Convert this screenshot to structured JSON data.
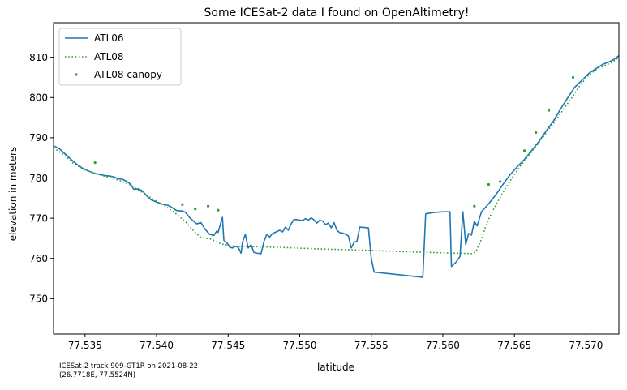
{
  "chart_data": {
    "type": "line",
    "title": "Some ICESat-2 data I found on OpenAltimetry!",
    "xlabel": "latitude",
    "ylabel": "elevation in meters",
    "xlim": [
      77.5328,
      77.5723
    ],
    "ylim": [
      741.2,
      818.6
    ],
    "xticks": [
      77.535,
      77.54,
      77.545,
      77.55,
      77.555,
      77.56,
      77.565,
      77.57
    ],
    "xtick_labels": [
      "77.535",
      "77.540",
      "77.545",
      "77.550",
      "77.555",
      "77.560",
      "77.565",
      "77.570"
    ],
    "yticks": [
      750,
      760,
      770,
      780,
      790,
      800,
      810
    ],
    "ytick_labels": [
      "750",
      "760",
      "770",
      "780",
      "790",
      "800",
      "810"
    ],
    "grid": false,
    "legend_position": "top-left",
    "annotation": [
      "ICESat-2 track 909-GT1R on 2021-08-22",
      "(26.7718E, 77.5524N)"
    ],
    "series": [
      {
        "name": "ATL06",
        "kind": "line",
        "style": "solid",
        "color": "#1f77b4",
        "points": [
          [
            77.5328,
            788.0
          ],
          [
            77.5332,
            787.3
          ],
          [
            77.5336,
            786.0
          ],
          [
            77.534,
            784.7
          ],
          [
            77.5344,
            783.5
          ],
          [
            77.5348,
            782.5
          ],
          [
            77.5352,
            781.8
          ],
          [
            77.5356,
            781.2
          ],
          [
            77.536,
            780.9
          ],
          [
            77.5364,
            780.6
          ],
          [
            77.5367,
            780.5
          ],
          [
            77.537,
            780.3
          ],
          [
            77.5373,
            779.8
          ],
          [
            77.5376,
            779.7
          ],
          [
            77.5379,
            779.2
          ],
          [
            77.5382,
            778.4
          ],
          [
            77.5384,
            777.2
          ],
          [
            77.5387,
            777.3
          ],
          [
            77.539,
            776.8
          ],
          [
            77.5393,
            775.6
          ],
          [
            77.5396,
            774.6
          ],
          [
            77.54,
            774.0
          ],
          [
            77.5404,
            773.5
          ],
          [
            77.5408,
            773.2
          ],
          [
            77.5411,
            772.6
          ],
          [
            77.5414,
            771.9
          ],
          [
            77.5418,
            771.8
          ],
          [
            77.542,
            771.5
          ],
          [
            77.5423,
            770.2
          ],
          [
            77.5426,
            769.2
          ],
          [
            77.5428,
            768.6
          ],
          [
            77.5431,
            768.9
          ],
          [
            77.5434,
            767.2
          ],
          [
            77.5437,
            766.0
          ],
          [
            77.544,
            765.7
          ],
          [
            77.5442,
            766.8
          ],
          [
            77.5443,
            766.5
          ],
          [
            77.5445,
            769.0
          ],
          [
            77.5446,
            770.2
          ],
          [
            77.5447,
            764.5
          ],
          [
            77.5449,
            764.0
          ],
          [
            77.5451,
            762.8
          ],
          [
            77.5453,
            762.6
          ],
          [
            77.5455,
            763.0
          ],
          [
            77.5457,
            762.8
          ],
          [
            77.5459,
            761.3
          ],
          [
            77.546,
            764.0
          ],
          [
            77.5462,
            766.0
          ],
          [
            77.5464,
            762.6
          ],
          [
            77.5466,
            763.4
          ],
          [
            77.5468,
            761.5
          ],
          [
            77.547,
            761.3
          ],
          [
            77.5473,
            761.2
          ],
          [
            77.5475,
            764.2
          ],
          [
            77.5477,
            766.0
          ],
          [
            77.5479,
            765.3
          ],
          [
            77.5481,
            766.2
          ],
          [
            77.5483,
            766.5
          ],
          [
            77.5486,
            767.0
          ],
          [
            77.5488,
            766.6
          ],
          [
            77.549,
            767.8
          ],
          [
            77.5492,
            767.0
          ],
          [
            77.5494,
            768.6
          ],
          [
            77.5496,
            769.7
          ],
          [
            77.5499,
            769.6
          ],
          [
            77.5502,
            769.4
          ],
          [
            77.5504,
            769.9
          ],
          [
            77.5506,
            769.5
          ],
          [
            77.5508,
            770.1
          ],
          [
            77.551,
            769.6
          ],
          [
            77.5512,
            768.8
          ],
          [
            77.5514,
            769.5
          ],
          [
            77.5516,
            769.3
          ],
          [
            77.5518,
            768.4
          ],
          [
            77.552,
            768.8
          ],
          [
            77.5522,
            767.6
          ],
          [
            77.5524,
            768.9
          ],
          [
            77.5526,
            767.0
          ],
          [
            77.5528,
            766.4
          ],
          [
            77.553,
            766.3
          ],
          [
            77.5532,
            766.0
          ],
          [
            77.5534,
            765.6
          ],
          [
            77.5536,
            762.6
          ],
          [
            77.5538,
            764.0
          ],
          [
            77.554,
            764.3
          ],
          [
            77.5542,
            767.8
          ],
          [
            77.5548,
            767.6
          ],
          [
            77.555,
            760.0
          ],
          [
            77.5552,
            756.6
          ],
          [
            77.5586,
            755.3
          ],
          [
            77.5588,
            771.1
          ],
          [
            77.5593,
            771.4
          ],
          [
            77.56,
            771.6
          ],
          [
            77.5605,
            771.6
          ],
          [
            77.5606,
            758.0
          ],
          [
            77.5609,
            759.0
          ],
          [
            77.5612,
            760.5
          ],
          [
            77.5614,
            771.6
          ],
          [
            77.5616,
            763.4
          ],
          [
            77.5618,
            766.2
          ],
          [
            77.562,
            765.8
          ],
          [
            77.5622,
            769.2
          ],
          [
            77.5624,
            768.1
          ],
          [
            77.5627,
            771.6
          ],
          [
            77.5632,
            773.6
          ],
          [
            77.5637,
            775.8
          ],
          [
            77.5642,
            778.4
          ],
          [
            77.5647,
            780.8
          ],
          [
            77.5652,
            782.8
          ],
          [
            77.5657,
            784.6
          ],
          [
            77.5662,
            786.8
          ],
          [
            77.5667,
            789.0
          ],
          [
            77.5672,
            791.6
          ],
          [
            77.5677,
            794.0
          ],
          [
            77.5682,
            797.0
          ],
          [
            77.5687,
            799.8
          ],
          [
            77.5692,
            802.5
          ],
          [
            77.5697,
            804.2
          ],
          [
            77.5702,
            806.0
          ],
          [
            77.5707,
            807.2
          ],
          [
            77.5712,
            808.3
          ],
          [
            77.5717,
            809.0
          ],
          [
            77.572,
            809.6
          ],
          [
            77.5723,
            810.4
          ]
        ]
      },
      {
        "name": "ATL08",
        "kind": "line",
        "style": "dotted",
        "color": "#2ca02c",
        "points": [
          [
            77.5328,
            787.5
          ],
          [
            77.5335,
            785.8
          ],
          [
            77.5342,
            783.6
          ],
          [
            77.535,
            782.0
          ],
          [
            77.5358,
            781.0
          ],
          [
            77.5366,
            780.2
          ],
          [
            77.5374,
            779.4
          ],
          [
            77.5382,
            778.2
          ],
          [
            77.539,
            776.4
          ],
          [
            77.5398,
            774.6
          ],
          [
            77.5406,
            773.0
          ],
          [
            77.5414,
            771.0
          ],
          [
            77.5421,
            768.8
          ],
          [
            77.5427,
            766.4
          ],
          [
            77.5431,
            765.2
          ],
          [
            77.5438,
            764.8
          ],
          [
            77.5445,
            763.6
          ],
          [
            77.5455,
            763.0
          ],
          [
            77.547,
            762.9
          ],
          [
            77.549,
            762.7
          ],
          [
            77.551,
            762.4
          ],
          [
            77.553,
            762.2
          ],
          [
            77.555,
            762.0
          ],
          [
            77.557,
            761.7
          ],
          [
            77.559,
            761.5
          ],
          [
            77.561,
            761.3
          ],
          [
            77.562,
            761.2
          ],
          [
            77.5623,
            761.6
          ],
          [
            77.5627,
            764.8
          ],
          [
            77.5631,
            769.0
          ],
          [
            77.5636,
            772.6
          ],
          [
            77.5642,
            776.4
          ],
          [
            77.5648,
            779.8
          ],
          [
            77.5654,
            782.9
          ],
          [
            77.566,
            785.6
          ],
          [
            77.5666,
            788.3
          ],
          [
            77.5672,
            791.1
          ],
          [
            77.5678,
            793.9
          ],
          [
            77.5684,
            796.9
          ],
          [
            77.569,
            799.9
          ],
          [
            77.5696,
            803.1
          ],
          [
            77.5702,
            805.6
          ],
          [
            77.5708,
            807.1
          ],
          [
            77.5714,
            808.1
          ],
          [
            77.5718,
            808.7
          ],
          [
            77.5723,
            810.0
          ]
        ]
      },
      {
        "name": "ATL08 canopy",
        "kind": "scatter",
        "color": "#2ca02c",
        "points": [
          [
            77.5357,
            783.8
          ],
          [
            77.5418,
            773.4
          ],
          [
            77.5427,
            772.3
          ],
          [
            77.5436,
            773.0
          ],
          [
            77.5443,
            772.0
          ],
          [
            77.5622,
            773.0
          ],
          [
            77.5632,
            778.4
          ],
          [
            77.564,
            779.1
          ],
          [
            77.5657,
            786.8
          ],
          [
            77.5665,
            791.3
          ],
          [
            77.5674,
            796.8
          ],
          [
            77.5691,
            805.0
          ]
        ]
      }
    ]
  }
}
